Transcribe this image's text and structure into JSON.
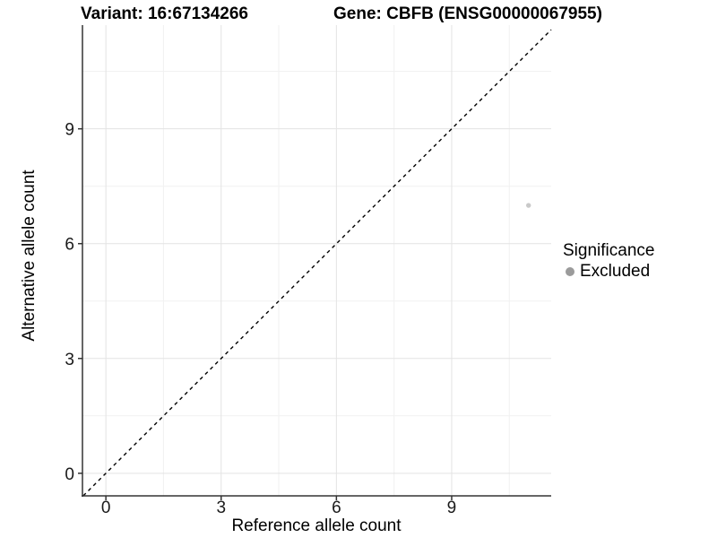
{
  "chart_data": {
    "type": "scatter",
    "title_left": "Variant: 16:67134266",
    "title_right": "Gene: CBFB (ENSG00000067955)",
    "xlabel": "Reference allele count",
    "ylabel": "Alternative allele count",
    "xlim": [
      -0.61,
      11.59
    ],
    "ylim": [
      -0.59,
      11.71
    ],
    "x_ticks": [
      0,
      3,
      6,
      9
    ],
    "y_ticks": [
      0,
      3,
      6,
      9
    ],
    "x_minor_gridlines": [
      1.5,
      4.5,
      7.5,
      10.5
    ],
    "y_minor_gridlines": [
      1.5,
      4.5,
      7.5,
      10.5
    ],
    "grid": true,
    "identity_line": {
      "slope": 1,
      "intercept": 0,
      "style": "dashed",
      "color": "#000000"
    },
    "series": [
      {
        "name": "Excluded",
        "color": "#c9c9c9",
        "points": [
          {
            "x": 11,
            "y": 7
          }
        ]
      }
    ],
    "legend": {
      "title": "Significance",
      "position": "right",
      "items": [
        {
          "label": "Excluded",
          "color": "#9b9b9b"
        }
      ]
    }
  },
  "colors": {
    "background": "#ffffff",
    "axis_line": "#333333",
    "tick_mark": "#333333",
    "grid_major": "#e3e3e3",
    "grid_minor": "#f1f1f1",
    "tick_text": "#1a1a1a",
    "title_text": "#000000"
  }
}
